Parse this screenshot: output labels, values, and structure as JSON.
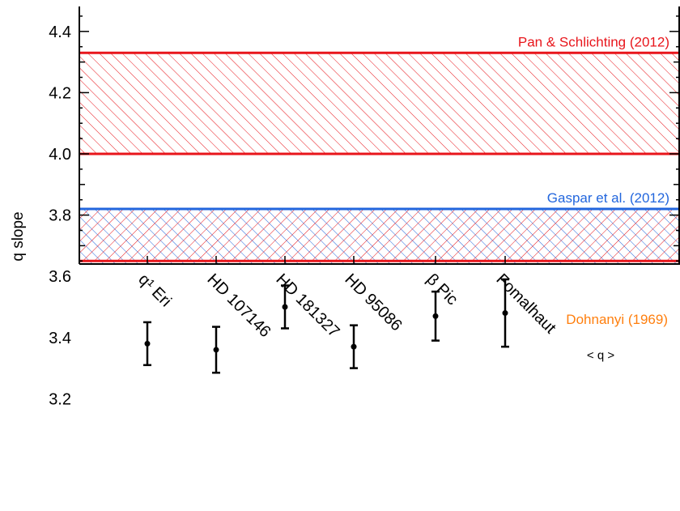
{
  "chart_data": {
    "type": "scatter",
    "ylabel": "q slope",
    "ylim": [
      3.1,
      4.5
    ],
    "yticks": [
      3.2,
      3.4,
      3.6,
      3.8,
      4.0,
      4.2,
      4.4
    ],
    "categories": [
      "q¹ Eri",
      "HD 107146",
      "HD 181327",
      "HD 95086",
      "β Pic",
      "Fomalhaut"
    ],
    "points": [
      {
        "value": 3.38,
        "low": 3.31,
        "high": 3.45
      },
      {
        "value": 3.36,
        "low": 3.285,
        "high": 3.435
      },
      {
        "value": 3.5,
        "low": 3.43,
        "high": 3.57
      },
      {
        "value": 3.37,
        "low": 3.3,
        "high": 3.44
      },
      {
        "value": 3.47,
        "low": 3.39,
        "high": 3.55
      },
      {
        "value": 3.48,
        "low": 3.37,
        "high": 3.59
      }
    ],
    "bands": [
      {
        "label": "Pan & Schlichting (2012)",
        "low": 4.0,
        "high": 4.33,
        "color": "#e8151b",
        "hatch": "diag-red"
      },
      {
        "label": "Gaspar et al. (2012)",
        "low": 3.51,
        "high": 3.82,
        "color": "#2266dd",
        "hatch": "diag-blue"
      }
    ],
    "overlap_band": {
      "low": 3.65,
      "high": 3.82,
      "color": "#e8151b"
    },
    "dohnanyi": {
      "label": "Dohnanyi (1969)",
      "value": 3.5,
      "color": "#ff7f0e"
    },
    "mean": {
      "label": "< q >",
      "value": 3.42,
      "low": 3.39,
      "high": 3.45
    }
  }
}
